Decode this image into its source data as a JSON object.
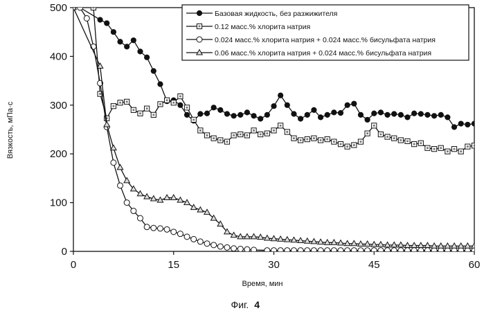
{
  "chart_data": {
    "type": "line",
    "xlabel": "Время, мин",
    "ylabel": "Вязкость, мПа·с",
    "xlim": [
      0,
      60
    ],
    "ylim": [
      0,
      500
    ],
    "xticks": [
      0,
      15,
      30,
      45,
      60
    ],
    "yticks": [
      0,
      100,
      200,
      300,
      400,
      500
    ],
    "grid": false,
    "legend_position": "top-right",
    "caption_prefix": "Фиг.",
    "caption_number": "4",
    "series": [
      {
        "name": "Базовая жидкость, без разжижителя",
        "marker": "filled-circle",
        "x": [
          1,
          4,
          5,
          6,
          7,
          8,
          9,
          10,
          11,
          12,
          13,
          14,
          15,
          16,
          17,
          18,
          19,
          20,
          21,
          22,
          23,
          24,
          25,
          26,
          27,
          28,
          29,
          30,
          31,
          32,
          33,
          34,
          35,
          36,
          37,
          38,
          39,
          40,
          41,
          42,
          43,
          44,
          45,
          46,
          47,
          48,
          49,
          50,
          51,
          52,
          53,
          54,
          55,
          56,
          57,
          58,
          59,
          60
        ],
        "y": [
          500,
          475,
          468,
          450,
          430,
          420,
          433,
          410,
          398,
          370,
          343,
          308,
          310,
          300,
          280,
          268,
          282,
          283,
          295,
          290,
          282,
          278,
          280,
          285,
          278,
          272,
          280,
          298,
          320,
          300,
          282,
          272,
          280,
          290,
          275,
          280,
          285,
          284,
          300,
          303,
          280,
          270,
          283,
          285,
          280,
          282,
          280,
          275,
          283,
          282,
          280,
          278,
          280,
          275,
          255,
          262,
          260,
          262
        ]
      },
      {
        "name": "0.12 масс.% хлорита натрия",
        "marker": "square",
        "x": [
          3,
          4,
          5,
          6,
          7,
          8,
          9,
          10,
          11,
          12,
          13,
          14,
          15,
          16,
          17,
          18,
          19,
          20,
          21,
          22,
          23,
          24,
          25,
          26,
          27,
          28,
          29,
          30,
          31,
          32,
          33,
          34,
          35,
          36,
          37,
          38,
          39,
          40,
          41,
          42,
          43,
          44,
          45,
          46,
          47,
          48,
          49,
          50,
          51,
          52,
          53,
          54,
          55,
          56,
          57,
          58,
          59,
          60
        ],
        "y": [
          500,
          323,
          273,
          298,
          305,
          307,
          290,
          283,
          293,
          280,
          302,
          310,
          305,
          318,
          295,
          270,
          248,
          238,
          232,
          228,
          225,
          238,
          240,
          238,
          248,
          240,
          242,
          248,
          258,
          245,
          232,
          228,
          230,
          232,
          228,
          230,
          225,
          220,
          215,
          218,
          225,
          242,
          258,
          240,
          235,
          232,
          228,
          226,
          220,
          222,
          212,
          210,
          212,
          205,
          210,
          205,
          215,
          217
        ]
      },
      {
        "name": "0.024 масс.% хлорита натрия + 0.024 масс.% бисульфата натрия",
        "marker": "open-circle",
        "x": [
          1,
          2,
          3,
          4,
          5,
          6,
          7,
          8,
          9,
          10,
          11,
          12,
          13,
          14,
          15,
          16,
          17,
          18,
          19,
          20,
          21,
          22,
          23,
          24,
          25,
          26,
          27,
          29,
          30,
          31,
          32,
          33,
          34,
          35,
          36,
          37,
          38,
          39,
          40,
          41,
          42,
          43,
          44,
          45,
          46,
          47,
          48,
          49,
          50,
          51,
          52,
          53,
          54,
          55,
          56,
          57,
          58,
          59,
          60
        ],
        "y": [
          500,
          478,
          420,
          345,
          255,
          182,
          135,
          100,
          83,
          68,
          50,
          48,
          47,
          45,
          40,
          36,
          30,
          25,
          20,
          16,
          13,
          10,
          8,
          6,
          5,
          4,
          3,
          2,
          2,
          2,
          2,
          2,
          2,
          2,
          2,
          2,
          2,
          2,
          2,
          2,
          2,
          2,
          2,
          2,
          2,
          2,
          2,
          2,
          2,
          2,
          2,
          2,
          2,
          2,
          2,
          2,
          2,
          2,
          2
        ]
      },
      {
        "name": "0.06 масс.% хлорита натрия + 0.024 масс.% бисульфата натрия",
        "marker": "open-triangle",
        "x": [
          0,
          4,
          5,
          6,
          7,
          8,
          9,
          10,
          11,
          12,
          13,
          14,
          15,
          16,
          17,
          18,
          19,
          20,
          21,
          22,
          23,
          24,
          25,
          26,
          27,
          28,
          29,
          30,
          31,
          32,
          33,
          34,
          35,
          36,
          37,
          38,
          39,
          40,
          41,
          42,
          43,
          44,
          45,
          46,
          47,
          48,
          49,
          50,
          51,
          52,
          53,
          54,
          55,
          56,
          57,
          58,
          59,
          60
        ],
        "y": [
          500,
          380,
          260,
          212,
          172,
          145,
          128,
          118,
          112,
          108,
          105,
          110,
          110,
          105,
          100,
          90,
          85,
          80,
          68,
          56,
          40,
          33,
          30,
          30,
          30,
          29,
          27,
          26,
          25,
          24,
          23,
          22,
          21,
          20,
          19,
          18,
          18,
          17,
          16,
          16,
          15,
          15,
          14,
          14,
          13,
          13,
          13,
          12,
          12,
          12,
          12,
          11,
          11,
          11,
          11,
          11,
          11,
          11
        ]
      }
    ]
  }
}
